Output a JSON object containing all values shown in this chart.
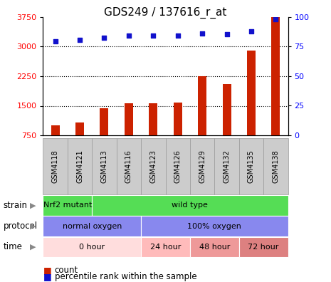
{
  "title": "GDS249 / 137616_r_at",
  "samples": [
    "GSM4118",
    "GSM4121",
    "GSM4113",
    "GSM4116",
    "GSM4123",
    "GSM4126",
    "GSM4129",
    "GSM4132",
    "GSM4135",
    "GSM4138"
  ],
  "counts": [
    1000,
    1080,
    1430,
    1560,
    1560,
    1580,
    2250,
    2050,
    2900,
    3750
  ],
  "percentiles": [
    79.5,
    80.5,
    82.5,
    84,
    84,
    84.5,
    86,
    85.5,
    88,
    98
  ],
  "ylim_left": [
    750,
    3750
  ],
  "ylim_right": [
    0,
    100
  ],
  "yticks_left": [
    750,
    1500,
    2250,
    3000,
    3750
  ],
  "yticks_right": [
    0,
    25,
    50,
    75,
    100
  ],
  "bar_color": "#cc2200",
  "dot_color": "#1111cc",
  "strain_labels": [
    {
      "label": "Nrf2 mutant",
      "start": 0,
      "end": 2
    },
    {
      "label": "wild type",
      "start": 2,
      "end": 10
    }
  ],
  "strain_color": "#55dd55",
  "protocol_labels": [
    {
      "label": "normal oxygen",
      "start": 0,
      "end": 4
    },
    {
      "label": "100% oxygen",
      "start": 4,
      "end": 10
    }
  ],
  "protocol_color": "#8888ee",
  "time_labels": [
    {
      "label": "0 hour",
      "start": 0,
      "end": 4,
      "color": "#ffdddd"
    },
    {
      "label": "24 hour",
      "start": 4,
      "end": 6,
      "color": "#ffbbbb"
    },
    {
      "label": "48 hour",
      "start": 6,
      "end": 8,
      "color": "#ee9999"
    },
    {
      "label": "72 hour",
      "start": 8,
      "end": 10,
      "color": "#dd8080"
    }
  ],
  "row_labels": [
    "strain",
    "protocol",
    "time"
  ],
  "legend_count_label": "count",
  "legend_pct_label": "percentile rank within the sample",
  "tick_box_color": "#cccccc",
  "tick_box_edge": "#999999"
}
